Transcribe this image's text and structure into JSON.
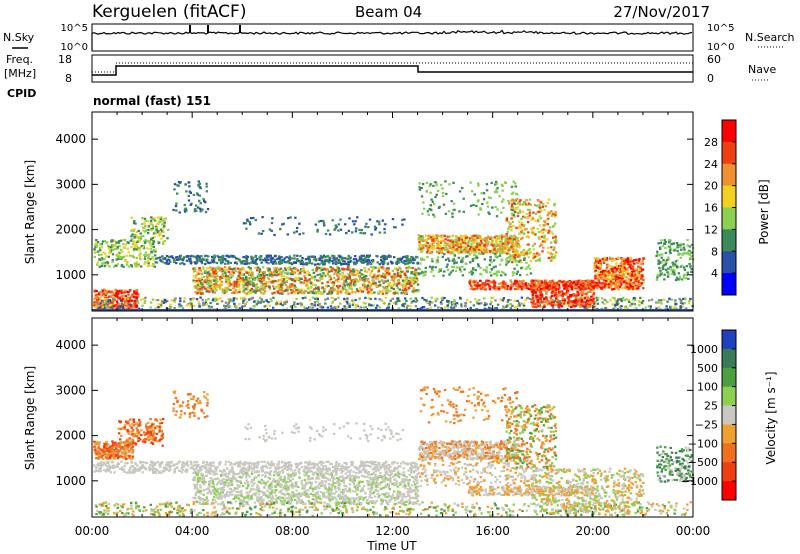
{
  "header": {
    "station": "Kerguelen (fitACF)",
    "beam": "Beam 04",
    "date": "27/Nov/2017"
  },
  "panels": {
    "nsky": {
      "left_label": "N.Sky",
      "left_ticks": [
        "10^5",
        "10^0"
      ],
      "right_ticks": [
        "10^5",
        "10^0"
      ],
      "right_label": "N.Search"
    },
    "freq": {
      "left_label_1": "Freq.",
      "left_label_2": "[MHz]",
      "left_ticks": [
        "18",
        "8"
      ],
      "right_ticks": [
        "60",
        "0"
      ],
      "right_label": "Nave",
      "cpid_label": "CPID",
      "mode_text": "normal (fast) 151"
    }
  },
  "colors": {
    "power_scale": [
      "#0000ff",
      "#2a50a8",
      "#3a8a5a",
      "#8cd050",
      "#f0d020",
      "#f09030",
      "#f04010",
      "#ff0000"
    ],
    "velocity_scale": [
      "#2040c0",
      "#3a7a5a",
      "#4aa040",
      "#8cd050",
      "#c8c8c0",
      "#f0a030",
      "#f07020",
      "#f04010",
      "#ff0000"
    ]
  },
  "chart_data": [
    {
      "type": "heatmap",
      "name": "power",
      "ylabel": "Slant Range [km]",
      "ylim": [
        200,
        4600
      ],
      "y_ticks": [
        1000,
        2000,
        3000,
        4000
      ],
      "x_ticks": [
        "00:00",
        "04:00",
        "08:00",
        "12:00",
        "16:00",
        "20:00",
        "00:00"
      ],
      "colorbar": {
        "label": "Power [dB]",
        "tick_labels": [
          "4",
          "8",
          "12",
          "16",
          "20",
          "24",
          "28"
        ]
      }
    },
    {
      "type": "heatmap",
      "name": "velocity",
      "ylabel": "Slant Range [km]",
      "ylim": [
        200,
        4600
      ],
      "y_ticks": [
        1000,
        2000,
        3000,
        4000
      ],
      "x_ticks": [
        "00:00",
        "04:00",
        "08:00",
        "12:00",
        "16:00",
        "20:00",
        "00:00"
      ],
      "xlabel": "Time UT",
      "colorbar": {
        "label": "Velocity [m s⁻¹]",
        "tick_labels": [
          "1000",
          "500",
          "100",
          "25",
          "−25",
          "−100",
          "−500",
          "−1000"
        ]
      }
    }
  ]
}
